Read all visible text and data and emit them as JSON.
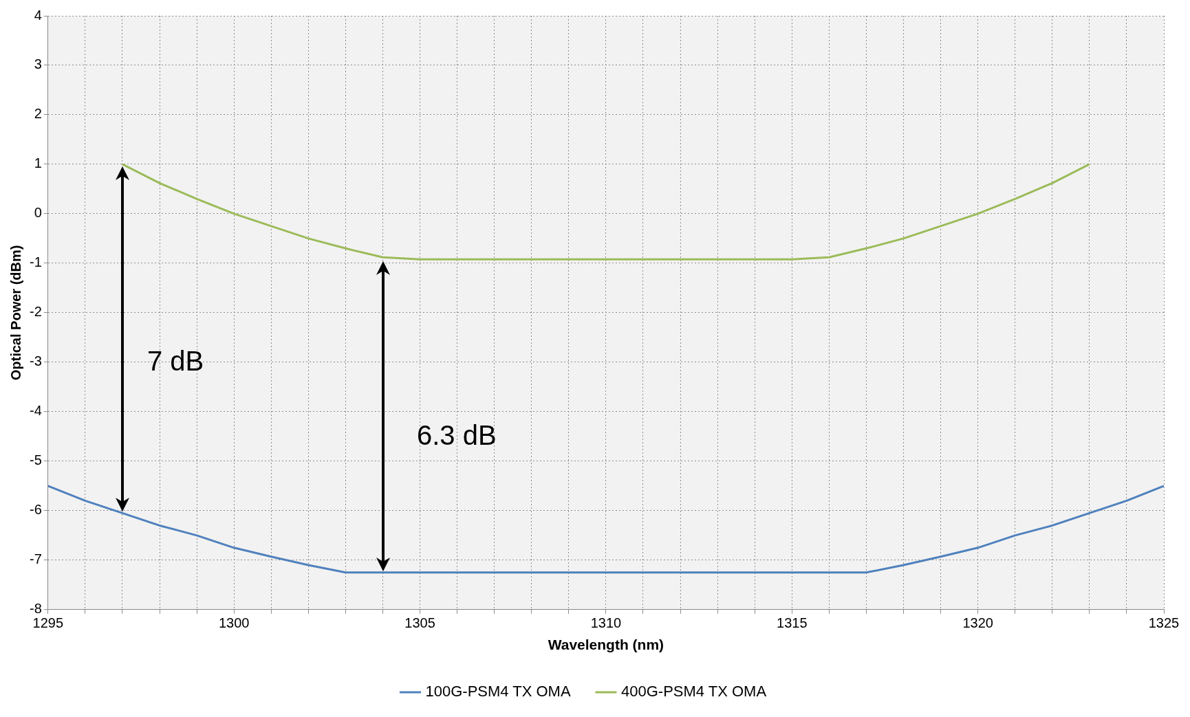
{
  "chart_data": {
    "type": "line",
    "xlabel": "Wavelength (nm)",
    "ylabel": "Optical Power (dBm)",
    "xlim": [
      1295,
      1325
    ],
    "xticks": [
      1295,
      {
        "value": 1296,
        "label": null
      },
      {
        "value": 1297,
        "label": null
      },
      {
        "value": 1298,
        "label": null
      },
      {
        "value": 1299,
        "label": null
      },
      1300,
      {
        "value": 1301,
        "label": null
      },
      {
        "value": 1302,
        "label": null
      },
      {
        "value": 1303,
        "label": null
      },
      {
        "value": 1304,
        "label": null
      },
      1305,
      {
        "value": 1306,
        "label": null
      },
      {
        "value": 1307,
        "label": null
      },
      {
        "value": 1308,
        "label": null
      },
      {
        "value": 1309,
        "label": null
      },
      1310,
      {
        "value": 1311,
        "label": null
      },
      {
        "value": 1312,
        "label": null
      },
      {
        "value": 1313,
        "label": null
      },
      {
        "value": 1314,
        "label": null
      },
      1315,
      {
        "value": 1316,
        "label": null
      },
      {
        "value": 1317,
        "label": null
      },
      {
        "value": 1318,
        "label": null
      },
      {
        "value": 1319,
        "label": null
      },
      1320,
      {
        "value": 1321,
        "label": null
      },
      {
        "value": 1322,
        "label": null
      },
      {
        "value": 1323,
        "label": null
      },
      {
        "value": 1324,
        "label": null
      },
      1325
    ],
    "ylim": [
      -8,
      4
    ],
    "yticks": [
      -8,
      -7,
      -6,
      -5,
      -4,
      -3,
      -2,
      -1,
      0,
      1,
      2,
      3,
      4
    ],
    "grid": true,
    "legend": "bottom",
    "marker": "none",
    "line_style": "solid",
    "series": [
      {
        "name": "100G-PSM4 TX OMA",
        "color": "#4f81bd",
        "x": [
          1295,
          1296,
          1297,
          1298,
          1299,
          1300,
          1301,
          1302,
          1303,
          1304,
          1305,
          1306,
          1307,
          1308,
          1309,
          1310,
          1311,
          1312,
          1313,
          1314,
          1315,
          1316,
          1317,
          1318,
          1319,
          1320,
          1321,
          1322,
          1323,
          1324,
          1325
        ],
        "values": [
          -5.5,
          -5.8,
          -6.05,
          -6.3,
          -6.5,
          -6.75,
          -6.93,
          -7.1,
          -7.25,
          -7.25,
          -7.25,
          -7.25,
          -7.25,
          -7.25,
          -7.25,
          -7.25,
          -7.25,
          -7.25,
          -7.25,
          -7.25,
          -7.25,
          -7.25,
          -7.25,
          -7.1,
          -6.93,
          -6.75,
          -6.5,
          -6.3,
          -6.05,
          -5.8,
          -5.5
        ]
      },
      {
        "name": "400G-PSM4 TX OMA",
        "color": "#9bbb59",
        "x": [
          1297,
          1298,
          1299,
          1300,
          1301,
          1302,
          1303,
          1304,
          1305,
          1306,
          1307,
          1308,
          1309,
          1310,
          1311,
          1312,
          1313,
          1314,
          1315,
          1316,
          1317,
          1318,
          1319,
          1320,
          1321,
          1322,
          1323
        ],
        "values": [
          1,
          0.62,
          0.3,
          0,
          -0.25,
          -0.5,
          -0.7,
          -0.88,
          -0.92,
          -0.92,
          -0.92,
          -0.92,
          -0.92,
          -0.92,
          -0.92,
          -0.92,
          -0.92,
          -0.92,
          -0.92,
          -0.88,
          -0.7,
          -0.5,
          -0.25,
          0,
          0.3,
          0.62,
          1
        ]
      }
    ],
    "annotations": [
      "7 dB",
      "6.3 dB"
    ]
  }
}
